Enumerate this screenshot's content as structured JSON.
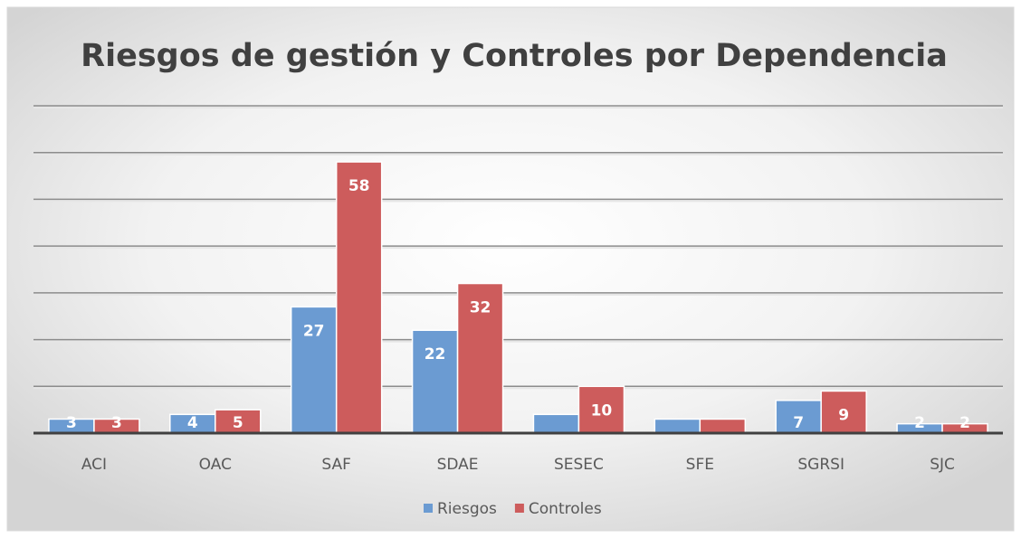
{
  "chart_data": {
    "type": "bar",
    "title": "Riesgos de gestión y Controles por Dependencia",
    "categories": [
      "ACI",
      "OAC",
      "SAF",
      "SDAE",
      "SESEC",
      "SFE",
      "SGRSI",
      "SJC"
    ],
    "series": [
      {
        "name": "Riesgos",
        "color": "#6b9bd2",
        "values": [
          3,
          4,
          27,
          22,
          4,
          3,
          7,
          2
        ],
        "value_labels": [
          "3",
          "4",
          "27",
          "22",
          null,
          null,
          "7",
          "2"
        ]
      },
      {
        "name": "Controles",
        "color": "#cd5c5c",
        "values": [
          3,
          5,
          58,
          32,
          10,
          3,
          9,
          2
        ],
        "value_labels": [
          "3",
          "5",
          "58",
          "32",
          "10",
          null,
          "9",
          "2"
        ]
      }
    ],
    "ylim": [
      0,
      70
    ],
    "yticks": [
      0,
      10,
      20,
      30,
      40,
      50,
      60,
      70
    ],
    "show_ytick_labels": false,
    "grid": true,
    "legend": "bottom"
  }
}
